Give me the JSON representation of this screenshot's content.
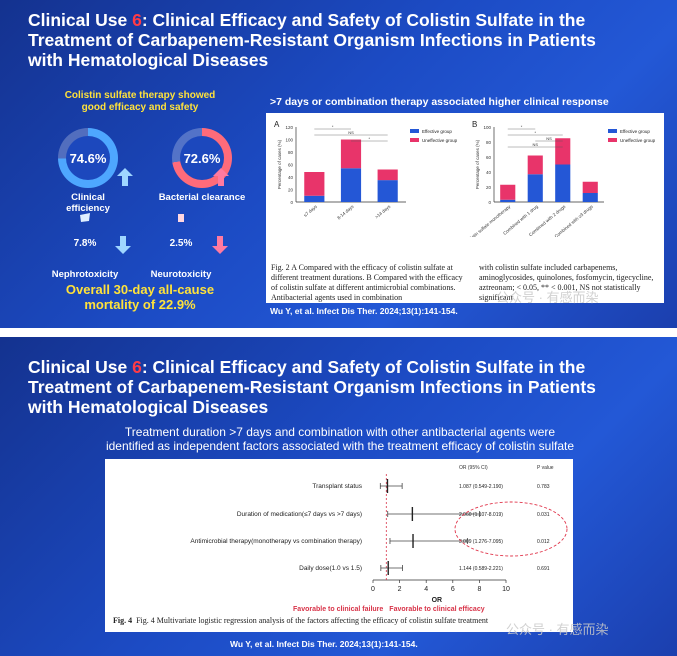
{
  "slide1": {
    "title_prefix": "Clinical Use ",
    "title_num": "6",
    "title_rest_line1": ": Clinical Efficacy and Safety of Colistin Sulfate in the",
    "title_line2": "Treatment of Carbapenem-Resistant Organism Infections in Patients",
    "title_line3": "with Hematological Diseases",
    "left_heading_line1": "Colistin sulfate therapy showed",
    "left_heading_line2": "good efficacy and safety",
    "metrics": [
      {
        "value": "74.6%",
        "label": "Clinical efficiency",
        "fraction": 0.746,
        "color": "#4ea7ff"
      },
      {
        "value": "72.6%",
        "label": "Bacterial clearance",
        "fraction": 0.726,
        "color": "#ff6b7a"
      },
      {
        "value": "7.8%",
        "label": "Nephrotoxicity",
        "fraction": 0.078,
        "color": "#4ea7ff"
      },
      {
        "value": "2.5%",
        "label": "Neurotoxicity",
        "fraction": 0.025,
        "color": "#ff6b7a"
      }
    ],
    "mortality_line1": "Overall 30-day all-cause",
    "mortality_line2": "mortality of 22.9%",
    "right_heading": ">7 days or combination therapy associated higher clinical response",
    "caption_left": "Fig. 2 A Compared with the efficacy of colistin sulfate at different treatment durations. B Compared with the efficacy of colistin sulfate at different antimicrobial combinations. Antibacterial agents used in combination",
    "caption_right": "with colistin sulfate included carbapenems, aminoglycosides, quinolones, fosfomycin, tigecycline, aztreonam; < 0.05, ** < 0.001, NS not statistically significant",
    "citation": "Wu Y, et al. Infect Dis Ther. 2024;13(1):141-154.",
    "watermark": "公众号 · 有感而染"
  },
  "chart_data": [
    {
      "type": "bar",
      "title": "A",
      "stacked": true,
      "categories": [
        "≤7 days",
        "8-14 days",
        ">14 days"
      ],
      "series": [
        {
          "name": "Effective group",
          "values": [
            10,
            54,
            35
          ],
          "color": "#2457d6"
        },
        {
          "name": "Uneffective group",
          "values": [
            38,
            46,
            17
          ],
          "color": "#e8346a"
        }
      ],
      "ylabel": "Percentage of cases (%)",
      "ylim": [
        0,
        120
      ],
      "yticks": [
        0,
        20,
        40,
        60,
        80,
        100,
        120
      ],
      "significance": [
        "*",
        "NS",
        "*"
      ],
      "legend": "top-right"
    },
    {
      "type": "bar",
      "title": "B",
      "stacked": true,
      "categories": [
        "Colistin sulfate monotherapy",
        "Combined with 1 drug",
        "Combined with 2 drugs",
        "Combined with ≥3 drugs"
      ],
      "series": [
        {
          "name": "Effective group",
          "values": [
            3,
            37,
            50,
            12
          ],
          "color": "#2457d6"
        },
        {
          "name": "Uneffective group",
          "values": [
            20,
            25,
            35,
            15
          ],
          "color": "#e8346a"
        }
      ],
      "ylabel": "Percentage of cases (%)",
      "ylim": [
        0,
        100
      ],
      "yticks": [
        0,
        20,
        40,
        60,
        80,
        100
      ],
      "significance": [
        "*",
        "*",
        "NS",
        "NS"
      ],
      "legend": "top-right"
    },
    {
      "type": "scatter",
      "title": "Forest plot",
      "xlabel": "OR",
      "xlim": [
        0,
        10
      ],
      "xticks": [
        0,
        2,
        4,
        6,
        8,
        10
      ],
      "reference_line": 1,
      "rows": [
        {
          "label": "Transplant status",
          "or": 1.087,
          "lo": 0.549,
          "hi": 2.19,
          "text": "1.087 (0.549-2.190)",
          "p": "0.783"
        },
        {
          "label": "Duration of medication(≤7 days vs >7 days)",
          "or": 2.96,
          "lo": 1.107,
          "hi": 8.019,
          "text": "2.960 (1.107-8.019)",
          "p": "0.031"
        },
        {
          "label": "Antimicrobial therapy(monotherapy vs combination therapy)",
          "or": 3.009,
          "lo": 1.276,
          "hi": 7.095,
          "text": "3.009 (1.276-7.095)",
          "p": "0.012"
        },
        {
          "label": "Daily dose(1.0 vs 1.5)",
          "or": 1.144,
          "lo": 0.589,
          "hi": 2.221,
          "text": "1.144 (0.589-2.221)",
          "p": "0.691"
        }
      ]
    }
  ],
  "slide2": {
    "title_prefix": "Clinical Use ",
    "title_num": "6",
    "title_rest_line1": ": Clinical Efficacy and Safety of Colistin Sulfate in the",
    "title_line2": "Treatment of Carbapenem-Resistant Organism Infections in Patients",
    "title_line3": "with Hematological Diseases",
    "subtitle_line1": "Treatment duration >7 days and combination with other antibacterial agents were",
    "subtitle_line2": "identified as independent factors associated with the treatment efficacy of colistin sulfate",
    "header_or": "OR (95% CI)",
    "header_p": "P value",
    "favor_left": "Favorable to clinical failure",
    "favor_right": "Favorable to clinical efficacy",
    "caption": "Fig. 4 Multivariate logistic regression analysis of the factors affecting the efficacy of colistin sulfate treatment",
    "citation": "Wu Y, et al. Infect Dis Ther. 2024;13(1):141-154.",
    "watermark": "公众号 · 有感而染"
  }
}
